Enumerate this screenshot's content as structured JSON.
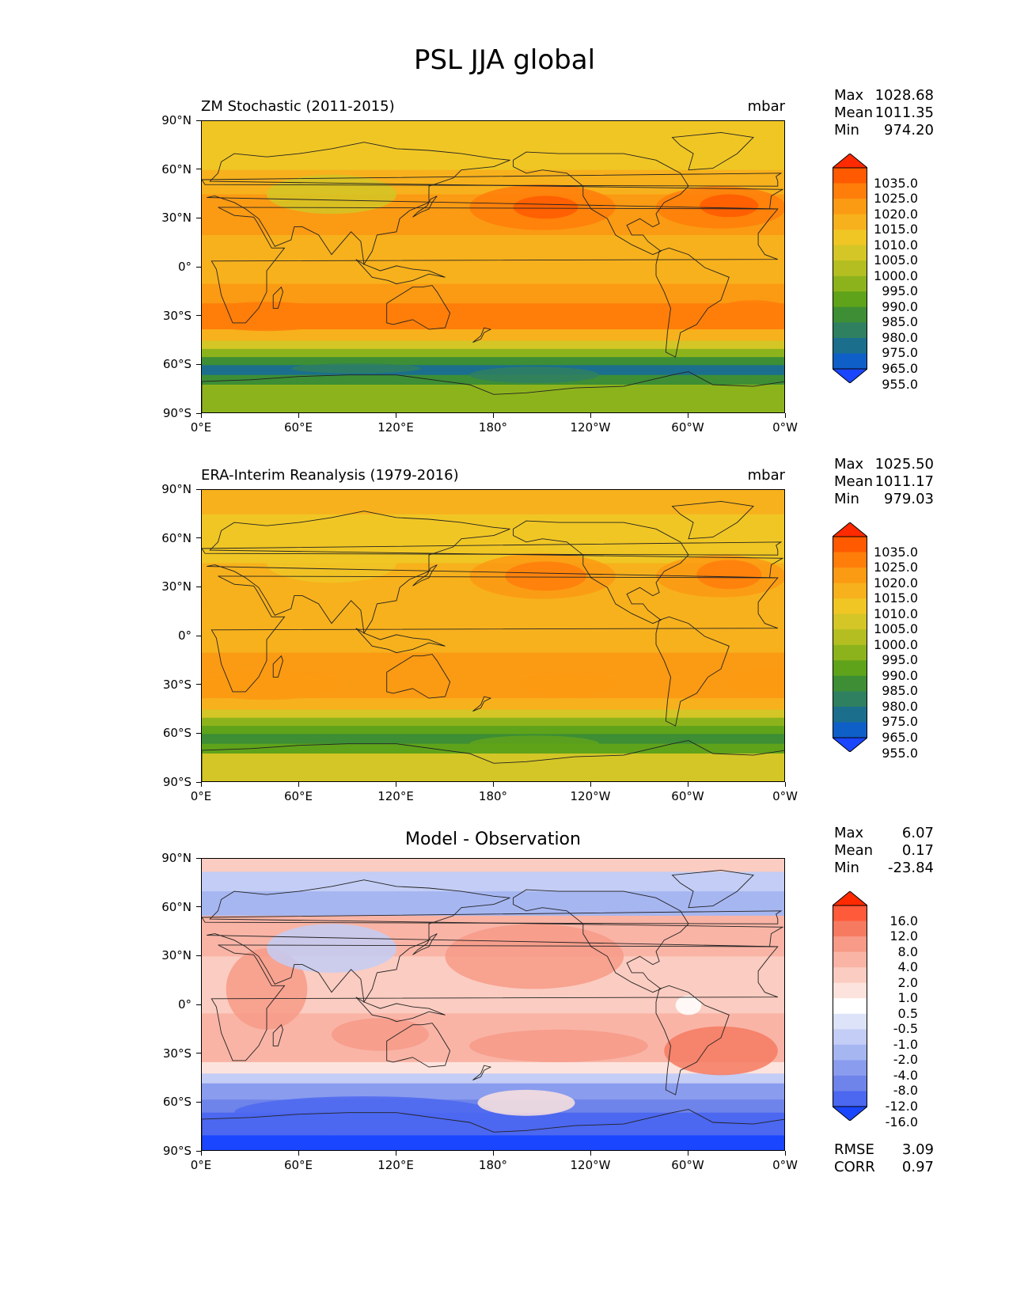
{
  "title": "PSL JJA global",
  "lat_labels": [
    "90°N",
    "60°N",
    "30°N",
    "0°",
    "30°S",
    "60°S",
    "90°S"
  ],
  "lon_labels": [
    "0°E",
    "60°E",
    "120°E",
    "180°",
    "120°W",
    "60°W",
    "0°W"
  ],
  "panels": [
    {
      "title": "ZM Stochastic (2011-2015)",
      "units": "mbar",
      "stats": [
        {
          "key": "Max",
          "value": "1028.68"
        },
        {
          "key": "Mean",
          "value": "1011.35"
        },
        {
          "key": "Min",
          "value": "974.20"
        }
      ],
      "colorbar_labels": [
        "1035.0",
        "1025.0",
        "1020.0",
        "1015.0",
        "1010.0",
        "1005.0",
        "1000.0",
        "995.0",
        "990.0",
        "985.0",
        "980.0",
        "975.0",
        "965.0",
        "955.0"
      ]
    },
    {
      "title": "ERA-Interim Reanalysis (1979-2016)",
      "units": "mbar",
      "stats": [
        {
          "key": "Max",
          "value": "1025.50"
        },
        {
          "key": "Mean",
          "value": "1011.17"
        },
        {
          "key": "Min",
          "value": "979.03"
        }
      ],
      "colorbar_labels": [
        "1035.0",
        "1025.0",
        "1020.0",
        "1015.0",
        "1010.0",
        "1005.0",
        "1000.0",
        "995.0",
        "990.0",
        "985.0",
        "980.0",
        "975.0",
        "965.0",
        "955.0"
      ]
    },
    {
      "title": "Model - Observation",
      "units": "",
      "stats": [
        {
          "key": "Max",
          "value": "6.07"
        },
        {
          "key": "Mean",
          "value": "0.17"
        },
        {
          "key": "Min",
          "value": "-23.84"
        }
      ],
      "colorbar_labels": [
        "16.0",
        "12.0",
        "8.0",
        "4.0",
        "2.0",
        "1.0",
        "0.5",
        "-0.5",
        "-1.0",
        "-2.0",
        "-4.0",
        "-8.0",
        "-12.0",
        "-16.0"
      ],
      "metrics": [
        {
          "key": "RMSE",
          "value": "3.09"
        },
        {
          "key": "CORR",
          "value": "0.97"
        }
      ]
    }
  ],
  "colors": {
    "psl_scale": [
      "#ff2a00",
      "#ff5a00",
      "#ff7e0a",
      "#fb9a13",
      "#f7b11c",
      "#f0c624",
      "#d4c626",
      "#b4be20",
      "#8db31c",
      "#5fa31a",
      "#3d8e35",
      "#2f8060",
      "#1b6f8d",
      "#0f5fc8",
      "#1a46ff"
    ],
    "diff_scale": [
      "#ff2a00",
      "#ff5a3a",
      "#f67a60",
      "#f79a87",
      "#f9b4a6",
      "#fbccc1",
      "#fde3dd",
      "#ffffff",
      "#dde3f8",
      "#c3cdf5",
      "#a6b6f1",
      "#8a9cee",
      "#6e84ea",
      "#4c67f0",
      "#1a46ff"
    ]
  }
}
